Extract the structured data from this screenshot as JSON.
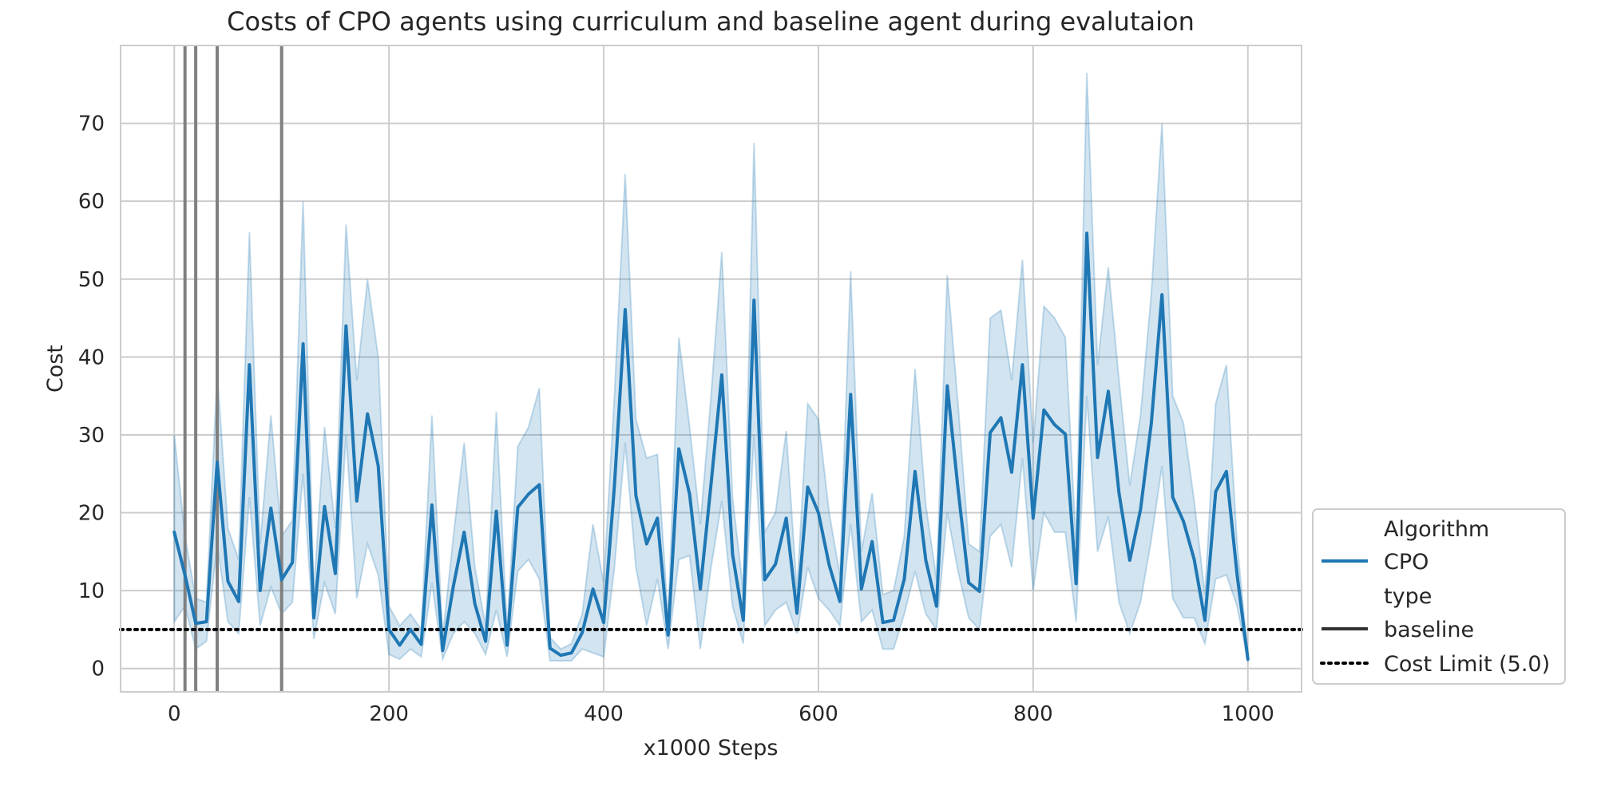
{
  "chart_data": {
    "type": "line",
    "title": "Costs of CPO agents using curriculum and baseline agent during evalutaion",
    "xlabel": "x1000 Steps",
    "ylabel": "Cost",
    "xlim": [
      -50,
      1050
    ],
    "ylim": [
      -3,
      80
    ],
    "xticks": [
      0,
      200,
      400,
      600,
      800,
      1000
    ],
    "xtick_labels": [
      "0",
      "200",
      "400",
      "600",
      "800",
      "1000"
    ],
    "yticks": [
      0,
      10,
      20,
      30,
      40,
      50,
      60,
      70
    ],
    "ytick_labels": [
      "0",
      "10",
      "20",
      "30",
      "40",
      "50",
      "60",
      "70"
    ],
    "grid": true,
    "colors": {
      "line": "#1f77b4",
      "band": "#1f77b4",
      "vlines": "#808080",
      "limit": "#000000",
      "grid": "#cccccc"
    },
    "vertical_lines_x": [
      10,
      20,
      40,
      100
    ],
    "cost_limit": 5.0,
    "series": [
      {
        "name": "CPO",
        "x": [
          0,
          10,
          20,
          30,
          40,
          50,
          60,
          70,
          80,
          90,
          100,
          110,
          120,
          130,
          140,
          150,
          160,
          170,
          180,
          190,
          200,
          210,
          220,
          230,
          240,
          250,
          260,
          270,
          280,
          290,
          300,
          310,
          320,
          330,
          340,
          350,
          360,
          370,
          380,
          390,
          400,
          410,
          420,
          430,
          440,
          450,
          460,
          470,
          480,
          490,
          500,
          510,
          520,
          530,
          540,
          550,
          560,
          570,
          580,
          590,
          600,
          610,
          620,
          630,
          640,
          650,
          660,
          670,
          680,
          690,
          700,
          710,
          720,
          730,
          740,
          750,
          760,
          770,
          780,
          790,
          800,
          810,
          820,
          830,
          840,
          850,
          860,
          870,
          880,
          890,
          900,
          910,
          920,
          930,
          940,
          950,
          960,
          970,
          980,
          990,
          1000
        ],
        "y": [
          17.5,
          12,
          5.8,
          6,
          26.5,
          11.2,
          8.6,
          39,
          10,
          20.6,
          11.4,
          13.6,
          41.7,
          6.5,
          20.8,
          12.2,
          44,
          21.5,
          32.7,
          26,
          5,
          3,
          5,
          3.1,
          21,
          2.3,
          10.6,
          17.5,
          8.3,
          3.5,
          20.2,
          3,
          20.7,
          22.4,
          23.6,
          2.6,
          1.7,
          2,
          4.6,
          10.2,
          5.9,
          23.5,
          46.1,
          22.2,
          16,
          19.3,
          4.3,
          28.2,
          22.4,
          10.2,
          23.7,
          37.7,
          14.7,
          6.2,
          47.3,
          11.4,
          13.4,
          19.3,
          7.1,
          23.3,
          20,
          13.3,
          8.6,
          35.2,
          10.2,
          16.3,
          5.9,
          6.2,
          11.5,
          25.3,
          13.9,
          8,
          36.3,
          23.1,
          11,
          9.9,
          30.3,
          32.2,
          25.2,
          39,
          19.3,
          33.2,
          31.3,
          30.1,
          10.9,
          55.9,
          27.1,
          35.6,
          22.5,
          13.9,
          20.4,
          31.4,
          48,
          22,
          18.9,
          14,
          6.2,
          22.7,
          25.3,
          12,
          1.2
        ],
        "lower": [
          6,
          8,
          2.5,
          3.5,
          16,
          6,
          4.5,
          22,
          5.5,
          10.5,
          7,
          8.5,
          25,
          3.8,
          11,
          7,
          30,
          9,
          16,
          12,
          1.8,
          1.2,
          2.5,
          1.5,
          11,
          1.2,
          4.5,
          6,
          4.5,
          1.8,
          7.5,
          1.5,
          12.5,
          14,
          11.5,
          1,
          1,
          1,
          2.5,
          2,
          1.5,
          13,
          29,
          13,
          5.5,
          11.5,
          2.5,
          14,
          14.5,
          2.5,
          13,
          21.5,
          8,
          3.2,
          30,
          5.5,
          7.5,
          8.5,
          4.5,
          13,
          9,
          7.5,
          5.5,
          18.5,
          6,
          7.5,
          2.5,
          2.5,
          7,
          12.5,
          7,
          5,
          20,
          12.5,
          6.5,
          5,
          17,
          18.5,
          13,
          27,
          10,
          20,
          17.5,
          17.5,
          6,
          35,
          15,
          19.5,
          8.5,
          4.5,
          8.5,
          16.5,
          26,
          9,
          6.5,
          6.5,
          3.2,
          11.5,
          12,
          8,
          0.8
        ],
        "upper": [
          30,
          17,
          9,
          8.5,
          38,
          18,
          14,
          56,
          16,
          32.5,
          17,
          19,
          60,
          10,
          31,
          18,
          57,
          37,
          50,
          40,
          8,
          5.5,
          7,
          5,
          32.5,
          4,
          17,
          29,
          13,
          5.5,
          33,
          5,
          28.5,
          31,
          36,
          4,
          2.5,
          3.2,
          7,
          18.5,
          11,
          35,
          63.5,
          32,
          27,
          27.5,
          6.5,
          42.5,
          31,
          18.5,
          35,
          53.5,
          22,
          10,
          67.5,
          17.5,
          20,
          30.5,
          10,
          34,
          32,
          20,
          12,
          51,
          15,
          22.5,
          9.5,
          10,
          17,
          38.5,
          21,
          11.5,
          50.5,
          34,
          16,
          15,
          45,
          46,
          37,
          52.5,
          29,
          46.5,
          45,
          42.5,
          16,
          76.5,
          39,
          51.5,
          37,
          23.5,
          32.5,
          48,
          70,
          35,
          31.5,
          21.5,
          9.5,
          34,
          39,
          16,
          1.8
        ]
      }
    ],
    "legend": {
      "placement": "lower-right outside",
      "header_algorithm": "Algorithm",
      "entry_cpo": "CPO",
      "header_type": "type",
      "entry_baseline": "baseline",
      "entry_limit": "Cost Limit (5.0)"
    }
  }
}
